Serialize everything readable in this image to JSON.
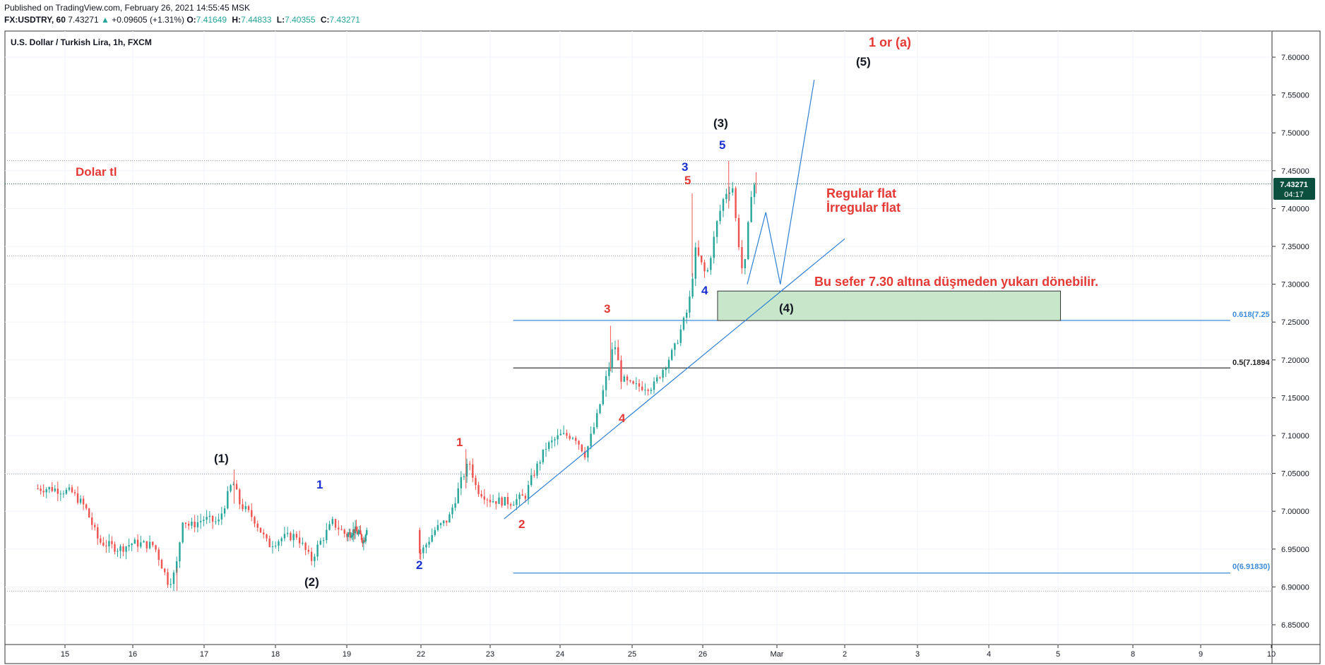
{
  "header": {
    "published": "Published on TradingView.com, February 26, 2021 14:55:45 MSK",
    "symbol": "FX:USDTRY, 60",
    "last": "7.43271",
    "arrow": "▲",
    "change": "+0.09605 (+1.31%)",
    "o_label": "O:",
    "o_val": "7.41649",
    "h_label": "H:",
    "h_val": "7.44833",
    "l_label": "L:",
    "l_val": "7.40355",
    "c_label": "C:",
    "c_val": "7.43271"
  },
  "chart_title": "U.S. Dollar / Turkish Lira, 1h, FXCM",
  "price_badge": {
    "price": "7.43271",
    "countdown": "04:17"
  },
  "colors": {
    "up": "#26a69a",
    "down": "#ef5350",
    "red_label": "#e53935",
    "blue_label": "#1a2fd1",
    "trend": "#2d7fd3",
    "zone_fill": "#c8e6c9",
    "zone_stroke": "#333333",
    "fib_blue": "#3d8bd9",
    "fib_black": "#222222",
    "badge": "#0b4f3f"
  },
  "x_ticks": [
    "15",
    "16",
    "17",
    "18",
    "19",
    "22",
    "23",
    "24",
    "25",
    "26",
    "Mar",
    "2",
    "3",
    "4",
    "5",
    "8",
    "9",
    "10"
  ],
  "y_ticks": [
    "7.60000",
    "7.55000",
    "7.50000",
    "7.45000",
    "7.40000",
    "7.35000",
    "7.30000",
    "7.25000",
    "7.20000",
    "7.15000",
    "7.10000",
    "7.05000",
    "7.00000",
    "6.95000",
    "6.90000",
    "6.85000"
  ],
  "annotations": {
    "dolar_tl": "Dolar tl",
    "wave_1": "(1)",
    "wave_2": "(2)",
    "wave_3": "(3)",
    "wave_4": "(4)",
    "wave_5": "(5)",
    "one_or_a": "1 or (a)",
    "regular_flat": "Regular flat",
    "irregular_flat": "İrregular flat",
    "note": "Bu sefer 7.30 altına düşmeden yukarı dönebilir.",
    "blue_1": "1",
    "blue_2": "2",
    "blue_3": "3",
    "blue_4": "4",
    "blue_5": "5",
    "red_1": "1",
    "red_2": "2",
    "red_3": "3",
    "red_4": "4",
    "red_5": "5"
  },
  "fib_labels": {
    "f618": "0.618(7.25",
    "f05": "0.5(7.1894",
    "f0": "0(6.91830)"
  },
  "chart_data": {
    "type": "candlestick",
    "title": "U.S. Dollar / Turkish Lira, 1h, FXCM",
    "ylim": [
      6.83,
      7.62
    ],
    "last_price": 7.43271,
    "fib_levels": [
      {
        "label": "0.618",
        "value": 7.2522
      },
      {
        "label": "0.5",
        "value": 7.1894
      },
      {
        "label": "0",
        "value": 6.9183
      }
    ],
    "horizontal_levels": [
      7.4632,
      7.3373,
      7.0491,
      6.8945
    ],
    "target_zone": [
      7.252,
      7.291
    ],
    "path_keys": [
      [
        14.8,
        7.03
      ],
      [
        15.1,
        7.025
      ],
      [
        15.3,
        7.005
      ],
      [
        15.5,
        6.96
      ],
      [
        15.8,
        6.95
      ],
      [
        16.0,
        6.958
      ],
      [
        16.3,
        6.955
      ],
      [
        16.5,
        6.905
      ],
      [
        16.6,
        6.92
      ],
      [
        16.7,
        6.99
      ],
      [
        16.8,
        6.98
      ],
      [
        17.0,
        6.99
      ],
      [
        17.2,
        6.985
      ],
      [
        17.4,
        7.04
      ],
      [
        17.5,
        7.01
      ],
      [
        17.7,
        6.99
      ],
      [
        17.9,
        6.955
      ],
      [
        18.1,
        6.965
      ],
      [
        18.3,
        6.968
      ],
      [
        18.5,
        6.935
      ],
      [
        18.6,
        6.955
      ],
      [
        18.8,
        6.985
      ],
      [
        19.0,
        6.968
      ],
      [
        19.3,
        6.975
      ],
      [
        19.5,
        6.97
      ],
      [
        19.7,
        6.96
      ],
      [
        19.8,
        6.98
      ],
      [
        22.0,
        6.945
      ],
      [
        22.2,
        6.975
      ],
      [
        22.4,
        6.99
      ],
      [
        22.6,
        7.045
      ],
      [
        22.7,
        7.065
      ],
      [
        22.8,
        7.03
      ],
      [
        23.0,
        7.015
      ],
      [
        23.3,
        7.012
      ],
      [
        23.5,
        7.02
      ],
      [
        23.6,
        7.045
      ],
      [
        23.8,
        7.085
      ],
      [
        24.0,
        7.1
      ],
      [
        24.2,
        7.1
      ],
      [
        24.35,
        7.075
      ],
      [
        24.5,
        7.12
      ],
      [
        24.7,
        7.2
      ],
      [
        24.75,
        7.225
      ],
      [
        24.85,
        7.175
      ],
      [
        25.0,
        7.165
      ],
      [
        25.3,
        7.165
      ],
      [
        25.4,
        7.182
      ],
      [
        25.6,
        7.215
      ],
      [
        25.8,
        7.27
      ],
      [
        25.9,
        7.345
      ],
      [
        26.05,
        7.31
      ],
      [
        26.2,
        7.385
      ],
      [
        26.3,
        7.42
      ],
      [
        26.4,
        7.43
      ],
      [
        26.45,
        7.38
      ],
      [
        26.55,
        7.305
      ],
      [
        26.65,
        7.42
      ],
      [
        26.7,
        7.433
      ]
    ],
    "projection": [
      [
        26.6,
        7.3
      ],
      [
        26.85,
        7.395
      ],
      [
        27.05,
        7.3
      ],
      [
        27.55,
        7.57
      ]
    ],
    "trendline": [
      [
        23.2,
        6.99
      ],
      [
        28.0,
        7.36
      ]
    ]
  }
}
